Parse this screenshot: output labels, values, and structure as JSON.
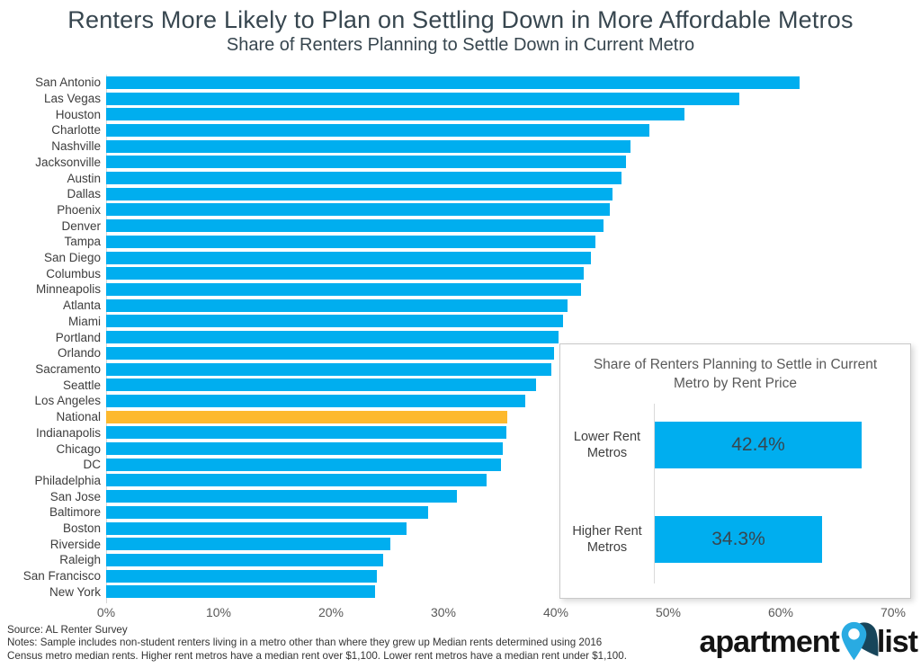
{
  "title": "Renters More Likely to Plan on Settling Down in More Affordable Metros",
  "subtitle": "Share of Renters Planning to Settle Down in Current Metro",
  "colors": {
    "bar_blue": "#00AEEF",
    "highlight_orange": "#FDB92E",
    "title_text": "#37464F",
    "axis_text": "#595959",
    "pin_blue": "#29ABE2",
    "pin_dark": "#17455A"
  },
  "chart_data": [
    {
      "name": "main",
      "type": "bar",
      "orientation": "horizontal",
      "title": "Share of Renters Planning to Settle Down in Current Metro",
      "categories": [
        "San Antonio",
        "Las Vegas",
        "Houston",
        "Charlotte",
        "Nashville",
        "Jacksonville",
        "Austin",
        "Dallas",
        "Phoenix",
        "Denver",
        "Tampa",
        "San Diego",
        "Columbus",
        "Minneapolis",
        "Atlanta",
        "Miami",
        "Portland",
        "Orlando",
        "Sacramento",
        "Seattle",
        "Los Angeles",
        "National",
        "Indianapolis",
        "Chicago",
        "DC",
        "Philadelphia",
        "San Jose",
        "Baltimore",
        "Boston",
        "Riverside",
        "Raleigh",
        "San Francisco",
        "New York"
      ],
      "values": [
        61.7,
        56.3,
        51.4,
        48.3,
        46.6,
        46.2,
        45.8,
        45.0,
        44.8,
        44.2,
        43.5,
        43.1,
        42.5,
        42.2,
        41.0,
        40.6,
        40.2,
        39.8,
        39.6,
        38.2,
        37.3,
        35.7,
        35.6,
        35.3,
        35.1,
        33.8,
        31.2,
        28.6,
        26.7,
        25.3,
        24.6,
        24.1,
        23.9
      ],
      "highlight_category": "National",
      "bar_color": "#00AEEF",
      "highlight_color": "#FDB92E",
      "xlim": [
        0,
        70
      ],
      "xticks": [
        "0%",
        "10%",
        "20%",
        "30%",
        "40%",
        "50%",
        "60%",
        "70%"
      ],
      "grid": false,
      "legend": false
    },
    {
      "name": "inset",
      "type": "bar",
      "orientation": "horizontal",
      "title": "Share of Renters Planning to Settle in Current Metro by Rent Price",
      "categories": [
        "Lower Rent Metros",
        "Higher Rent Metros"
      ],
      "values": [
        42.4,
        34.3
      ],
      "data_labels": [
        "42.4%",
        "34.3%"
      ],
      "bar_color": "#00AEEF",
      "xlim": [
        0,
        52
      ],
      "grid": false,
      "legend": false
    }
  ],
  "footer": {
    "source": "Source: AL Renter Survey",
    "notes_line1": "Notes: Sample includes non-student renters living in a metro other than where they grew up Median rents determined using 2016",
    "notes_line2": "Census metro median rents. Higher rent metros have a median rent over $1,100. Lower rent metros have a median rent under $1,100."
  },
  "logo": {
    "word1": "apartment",
    "word2": "list"
  }
}
